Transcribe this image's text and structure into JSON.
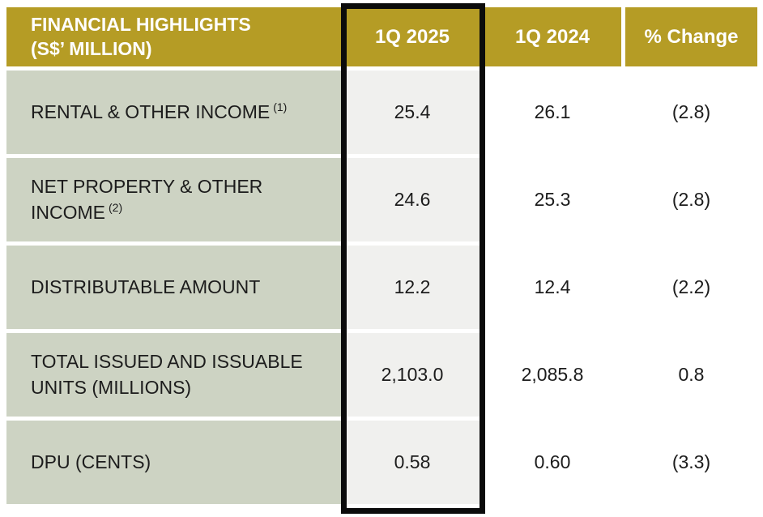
{
  "table": {
    "header": {
      "title": "FINANCIAL HIGHLIGHTS\n(S$’ MILLION)",
      "col_2025": "1Q 2025",
      "col_2024": "1Q 2024",
      "col_change": "% Change"
    },
    "rows": [
      {
        "label": "RENTAL & OTHER INCOME",
        "footnote": "(1)",
        "v2025": "25.4",
        "v2024": "26.1",
        "change": "(2.8)"
      },
      {
        "label": "NET PROPERTY & OTHER INCOME",
        "footnote": "(2)",
        "v2025": "24.6",
        "v2024": "25.3",
        "change": "(2.8)"
      },
      {
        "label": "DISTRIBUTABLE AMOUNT",
        "footnote": "",
        "v2025": "12.2",
        "v2024": "12.4",
        "change": "(2.2)"
      },
      {
        "label": "TOTAL ISSUED AND ISSUABLE UNITS (MILLIONS)",
        "footnote": "",
        "v2025": "2,103.0",
        "v2024": "2,085.8",
        "change": "0.8"
      },
      {
        "label": "DPU (CENTS)",
        "footnote": "",
        "v2025": "0.58",
        "v2024": "0.60",
        "change": "(3.3)"
      }
    ],
    "colors": {
      "header_gold": "#b59c25",
      "label_green": "#cdd3c3",
      "highlight_fill": "#f0f0ee",
      "highlight_border": "#0b0b0b",
      "header_text": "#ffffff",
      "body_text": "#1c1c1c",
      "page_bg": "#ffffff"
    }
  }
}
